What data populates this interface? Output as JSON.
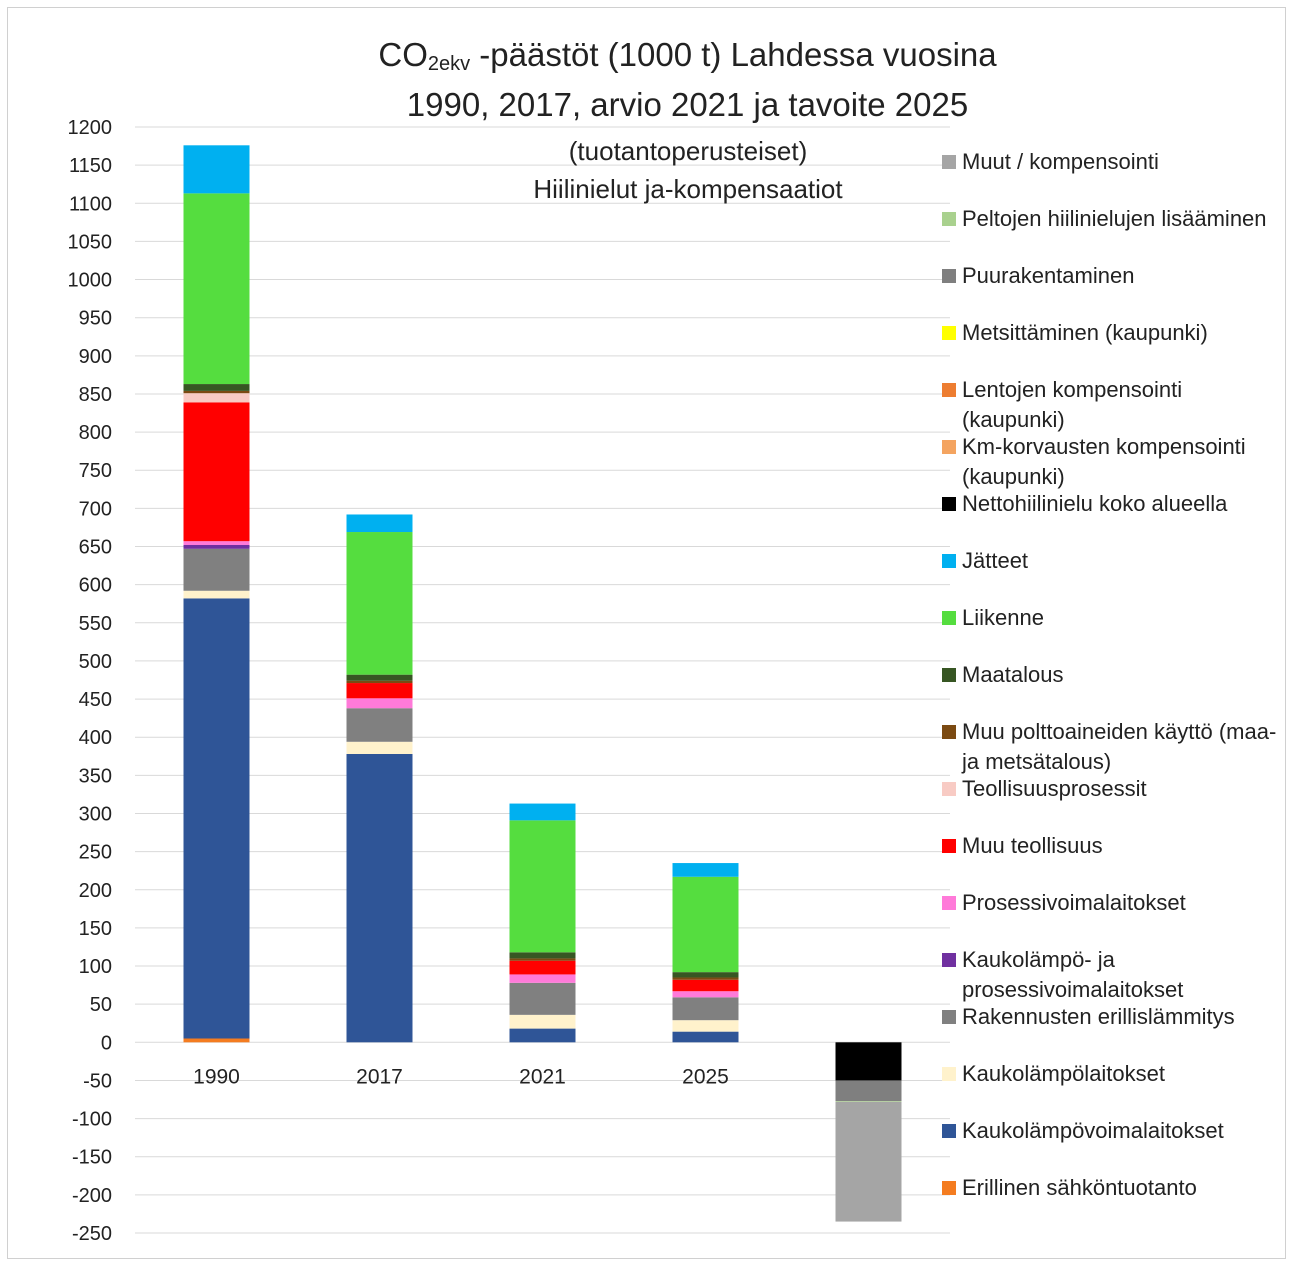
{
  "title": {
    "line1_prefix": "CO",
    "line1_sub": "2ekv",
    "line1_rest": " -päästöt (1000 t) Lahdessa vuosina",
    "line2": "1990, 2017, arvio 2021 ja tavoite 2025",
    "line3": "(tuotantoperusteiset)",
    "line4": "Hiilinielut ja-kompensaatiot"
  },
  "legend": [
    {
      "label": "Muut / kompensointi",
      "color": "#a5a5a5"
    },
    {
      "label": "Peltojen hiilinielujen lisääminen",
      "color": "#a9d18e"
    },
    {
      "label": "Puurakentaminen",
      "color": "#7f7f7f"
    },
    {
      "label": "Metsittäminen (kaupunki)",
      "color": "#ffff00"
    },
    {
      "label": "Lentojen kompensointi (kaupunki)",
      "color": "#ed7d31"
    },
    {
      "label": "Km-korvausten kompensointi (kaupunki)",
      "color": "#f4a460"
    },
    {
      "label": "Nettohiilinielu koko alueella",
      "color": "#000000"
    },
    {
      "label": "Jätteet",
      "color": "#00b0f0"
    },
    {
      "label": "Liikenne",
      "color": "#55dd3f"
    },
    {
      "label": "Maatalous",
      "color": "#375623"
    },
    {
      "label": "Muu polttoaineiden käyttö (maa- ja metsätalous)",
      "color": "#7b4a12"
    },
    {
      "label": "Teollisuusprosessit",
      "color": "#f8cbc4"
    },
    {
      "label": "Muu teollisuus",
      "color": "#ff0000"
    },
    {
      "label": "Prosessivoimalaitokset",
      "color": "#ff7ad9"
    },
    {
      "label": "Kaukolämpö- ja prosessivoimalaitokset",
      "color": "#7030a0"
    },
    {
      "label": "Rakennusten erillislämmitys",
      "color": "#808080"
    },
    {
      "label": "Kaukolämpölaitokset",
      "color": "#fff2cc"
    },
    {
      "label": "Kaukolämpövoimalaitokset",
      "color": "#2f5597"
    },
    {
      "label": "Erillinen sähköntuotanto",
      "color": "#f47c20"
    }
  ],
  "chart_data": {
    "type": "bar",
    "stacked": true,
    "categories": [
      "1990",
      "2017",
      "2021",
      "2025",
      ""
    ],
    "ylim": [
      -250,
      1200
    ],
    "yticks": [
      1200,
      1150,
      1100,
      1050,
      1000,
      950,
      900,
      850,
      800,
      750,
      700,
      650,
      600,
      550,
      500,
      450,
      400,
      350,
      300,
      250,
      200,
      150,
      100,
      50,
      0,
      -50,
      -100,
      -150,
      -200,
      -250
    ],
    "grid": true,
    "legend_position": "right",
    "series": [
      {
        "name": "Erillinen sähköntuotanto",
        "color": "#f47c20",
        "values": [
          5,
          0,
          0,
          0,
          0
        ]
      },
      {
        "name": "Kaukolämpövoimalaitokset",
        "color": "#2f5597",
        "values": [
          577,
          378,
          18,
          14,
          0
        ]
      },
      {
        "name": "Kaukolämpölaitokset",
        "color": "#fff2cc",
        "values": [
          10,
          16,
          18,
          15,
          0
        ]
      },
      {
        "name": "Rakennusten erillislämmitys",
        "color": "#808080",
        "values": [
          55,
          44,
          42,
          30,
          0
        ]
      },
      {
        "name": "Kaukolämpö- ja prosessivoimalaitokset",
        "color": "#7030a0",
        "values": [
          5,
          0,
          0,
          0,
          0
        ]
      },
      {
        "name": "Prosessivoimalaitokset",
        "color": "#ff7ad9",
        "values": [
          5,
          13,
          11,
          8,
          0
        ]
      },
      {
        "name": "Muu teollisuus",
        "color": "#ff0000",
        "values": [
          182,
          20,
          18,
          15,
          0
        ]
      },
      {
        "name": "Teollisuusprosessit",
        "color": "#f8cbc4",
        "values": [
          12,
          0,
          0,
          0,
          0
        ]
      },
      {
        "name": "Muu polttoaineiden käyttö (maa- ja metsätalous)",
        "color": "#7b4a12",
        "values": [
          3,
          3,
          3,
          3,
          0
        ]
      },
      {
        "name": "Maatalous",
        "color": "#375623",
        "values": [
          9,
          8,
          8,
          7,
          0
        ]
      },
      {
        "name": "Liikenne",
        "color": "#55dd3f",
        "values": [
          250,
          187,
          173,
          125,
          0
        ]
      },
      {
        "name": "Jätteet",
        "color": "#00b0f0",
        "values": [
          63,
          23,
          22,
          18,
          0
        ]
      },
      {
        "name": "Nettohiilinielu koko alueella",
        "color": "#000000",
        "values": [
          0,
          0,
          0,
          0,
          -50
        ]
      },
      {
        "name": "Puurakentaminen",
        "color": "#7f7f7f",
        "values": [
          0,
          0,
          0,
          0,
          -27
        ]
      },
      {
        "name": "Peltojen hiilinielujen lisääminen",
        "color": "#a9d18e",
        "values": [
          0,
          0,
          0,
          0,
          -1
        ]
      },
      {
        "name": "Muut / kompensointi",
        "color": "#a5a5a5",
        "values": [
          0,
          0,
          0,
          0,
          -157
        ]
      }
    ]
  }
}
